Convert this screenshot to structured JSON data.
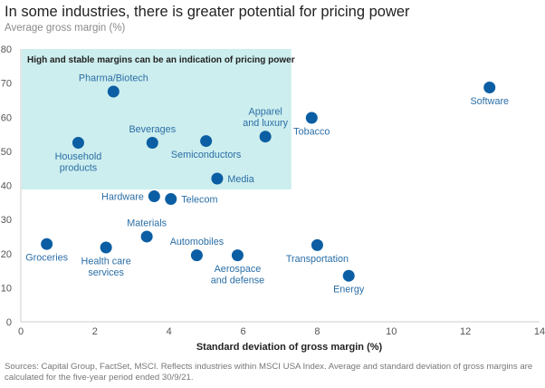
{
  "header": {
    "title": "In some industries, there is greater potential for pricing power",
    "subtitle": "Average gross margin (%)"
  },
  "footer": {
    "source": "Sources: Capital Group, FactSet, MSCI. Reflects industries within MSCI USA Index. Average and standard deviation of gross margins are calculated for the five-year period ended 30/9/21."
  },
  "colors": {
    "point": "#0b5ea3",
    "label": "#2a6ea6",
    "highlight_region": "#cdeeee",
    "axis": "#cccccc"
  },
  "chart_data": {
    "type": "scatter",
    "title": "In some industries, there is greater potential for pricing power",
    "ylabel": "Average gross margin (%)",
    "xlabel": "Standard deviation of gross margin (%)",
    "xlim": [
      0,
      14
    ],
    "ylim": [
      0,
      80
    ],
    "xticks": [
      0,
      2,
      4,
      6,
      8,
      10,
      12,
      14
    ],
    "yticks": [
      0,
      10,
      20,
      30,
      40,
      50,
      60,
      70,
      80
    ],
    "grid": false,
    "highlight_region": {
      "x": [
        0,
        7.3
      ],
      "y": [
        38.8,
        80
      ],
      "label": "High and stable margins can be an indication of pricing power"
    },
    "points": [
      {
        "name": "Pharma/Biotech",
        "lines": [
          "Pharma/Biotech"
        ],
        "x": 2.5,
        "y": 67.5,
        "pos": "top"
      },
      {
        "name": "Household products",
        "lines": [
          "Household",
          "products"
        ],
        "x": 1.55,
        "y": 52.5,
        "pos": "bottom"
      },
      {
        "name": "Beverages",
        "lines": [
          "Beverages"
        ],
        "x": 3.55,
        "y": 52.5,
        "pos": "top"
      },
      {
        "name": "Semiconductors",
        "lines": [
          "Semiconductors"
        ],
        "x": 5.0,
        "y": 53.0,
        "pos": "bottom"
      },
      {
        "name": "Apparel and luxury",
        "lines": [
          "Apparel",
          "and luxury"
        ],
        "x": 6.6,
        "y": 54.3,
        "pos": "top"
      },
      {
        "name": "Media",
        "lines": [
          "Media"
        ],
        "x": 5.3,
        "y": 42.0,
        "pos": "right"
      },
      {
        "name": "Tobacco",
        "lines": [
          "Tobacco"
        ],
        "x": 7.85,
        "y": 59.8,
        "pos": "bottom"
      },
      {
        "name": "Software",
        "lines": [
          "Software"
        ],
        "x": 12.65,
        "y": 68.7,
        "pos": "bottom"
      },
      {
        "name": "Hardware",
        "lines": [
          "Hardware"
        ],
        "x": 3.6,
        "y": 36.8,
        "pos": "left"
      },
      {
        "name": "Telecom",
        "lines": [
          "Telecom"
        ],
        "x": 4.05,
        "y": 36.0,
        "pos": "right"
      },
      {
        "name": "Materials",
        "lines": [
          "Materials"
        ],
        "x": 3.4,
        "y": 25.0,
        "pos": "top"
      },
      {
        "name": "Groceries",
        "lines": [
          "Groceries"
        ],
        "x": 0.7,
        "y": 22.8,
        "pos": "bottom"
      },
      {
        "name": "Health care services",
        "lines": [
          "Health care",
          "services"
        ],
        "x": 2.3,
        "y": 21.8,
        "pos": "bottom"
      },
      {
        "name": "Automobiles",
        "lines": [
          "Automobiles"
        ],
        "x": 4.75,
        "y": 19.5,
        "pos": "top"
      },
      {
        "name": "Aerospace and defense",
        "lines": [
          "Aerospace",
          "and defense"
        ],
        "x": 5.85,
        "y": 19.5,
        "pos": "bottom"
      },
      {
        "name": "Transportation",
        "lines": [
          "Transportation"
        ],
        "x": 8.0,
        "y": 22.5,
        "pos": "bottom"
      },
      {
        "name": "Energy",
        "lines": [
          "Energy"
        ],
        "x": 8.85,
        "y": 13.5,
        "pos": "bottom"
      }
    ]
  }
}
